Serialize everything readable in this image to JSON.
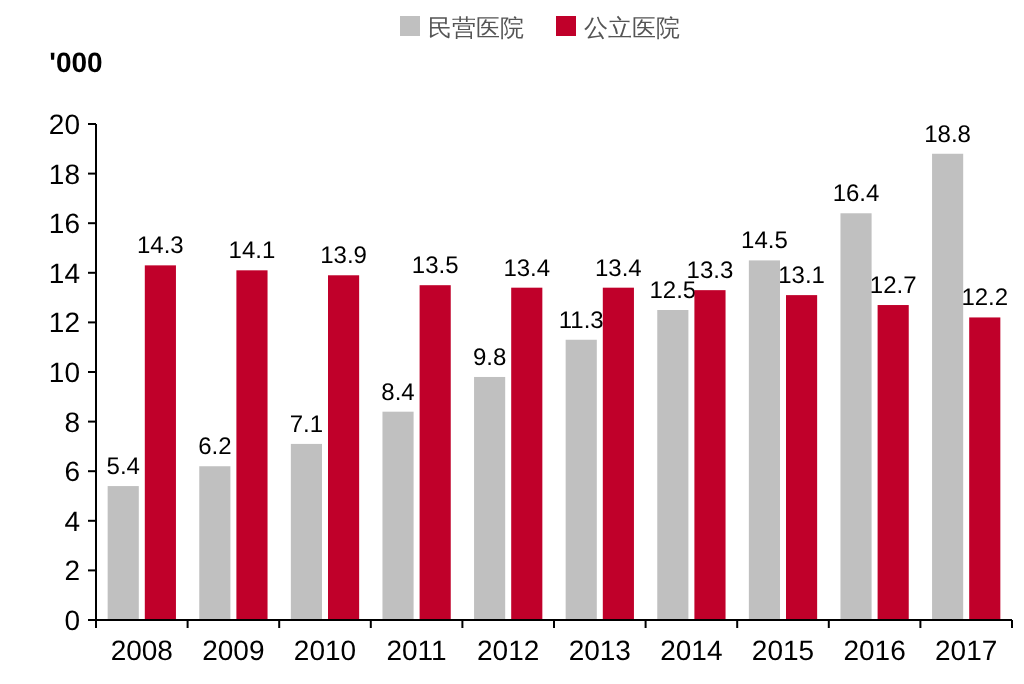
{
  "chart_data": {
    "type": "bar",
    "ylabel": "'000",
    "categories": [
      "2008",
      "2009",
      "2010",
      "2011",
      "2012",
      "2013",
      "2014",
      "2015",
      "2016",
      "2017"
    ],
    "series": [
      {
        "name": "民营医院",
        "color": "#c0c0c0",
        "values": [
          5.4,
          6.2,
          7.1,
          8.4,
          9.8,
          11.3,
          12.5,
          14.5,
          16.4,
          18.8
        ]
      },
      {
        "name": "公立医院",
        "color": "#c0002a",
        "values": [
          14.3,
          14.1,
          13.9,
          13.5,
          13.4,
          13.4,
          13.3,
          13.1,
          12.7,
          12.2
        ]
      }
    ],
    "ylim": [
      0,
      20
    ],
    "yticks": [
      0,
      2,
      4,
      6,
      8,
      10,
      12,
      14,
      16,
      18,
      20
    ],
    "data_labels": true,
    "legend": "top",
    "grid": false
  }
}
